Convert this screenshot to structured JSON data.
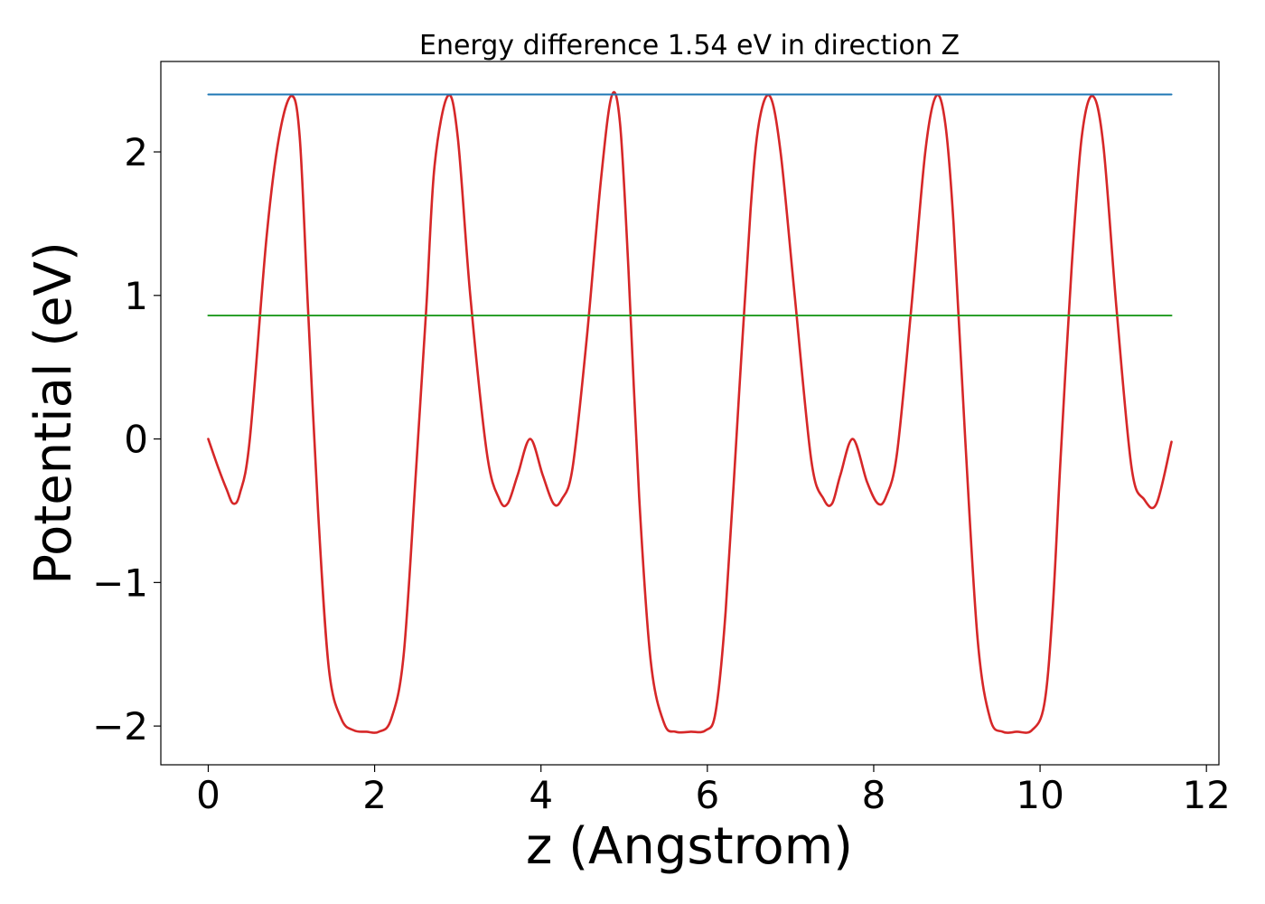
{
  "chart_data": {
    "type": "line",
    "title": "Energy difference 1.54 eV in direction Z",
    "xlabel": "z (Angstrom)",
    "ylabel": "Potential (eV)",
    "xlim": [
      -0.57,
      12.15
    ],
    "ylim": [
      -2.27,
      2.63
    ],
    "xticks": [
      0,
      2,
      4,
      6,
      8,
      10,
      12
    ],
    "yticks": [
      -2,
      -1,
      0,
      1,
      2
    ],
    "xtick_labels": [
      "0",
      "2",
      "4",
      "6",
      "8",
      "10",
      "12"
    ],
    "ytick_labels": [
      "−2",
      "−1",
      "0",
      "1",
      "2"
    ],
    "grid": false,
    "series": [
      {
        "color": "#d62728",
        "style": "curve",
        "x": [
          0.0,
          0.12,
          0.22,
          0.3,
          0.38,
          0.5,
          0.7,
          0.85,
          1.0,
          1.1,
          1.2,
          1.32,
          1.45,
          1.6,
          1.75,
          1.9,
          2.05,
          2.2,
          2.35,
          2.5,
          2.62,
          2.72,
          2.88,
          3.0,
          3.15,
          3.35,
          3.5,
          3.6,
          3.72,
          3.87,
          4.02,
          4.15,
          4.25,
          4.38,
          4.55,
          4.72,
          4.85,
          4.95,
          5.05,
          5.18,
          5.32,
          5.48,
          5.62,
          5.8,
          5.98,
          6.1,
          6.22,
          6.38,
          6.52,
          6.62,
          6.75,
          6.88,
          7.05,
          7.25,
          7.4,
          7.5,
          7.6,
          7.75,
          7.92,
          8.05,
          8.15,
          8.28,
          8.45,
          8.62,
          8.75,
          8.86,
          8.96,
          9.1,
          9.25,
          9.4,
          9.55,
          9.72,
          9.9,
          10.05,
          10.15,
          10.25,
          10.38,
          10.5,
          10.63,
          10.76,
          10.92,
          11.1,
          11.25,
          11.4,
          11.58
        ],
        "y": [
          0.0,
          -0.2,
          -0.35,
          -0.45,
          -0.38,
          0.0,
          1.4,
          2.1,
          2.39,
          2.1,
          0.9,
          -0.5,
          -1.6,
          -1.95,
          -2.03,
          -2.04,
          -2.04,
          -1.95,
          -1.5,
          -0.2,
          0.9,
          1.9,
          2.39,
          2.1,
          1.0,
          -0.1,
          -0.42,
          -0.45,
          -0.25,
          0.0,
          -0.25,
          -0.45,
          -0.42,
          -0.2,
          0.7,
          1.8,
          2.39,
          2.2,
          1.2,
          -0.4,
          -1.55,
          -1.98,
          -2.04,
          -2.04,
          -2.03,
          -1.9,
          -1.2,
          0.3,
          1.6,
          2.2,
          2.39,
          2.0,
          1.0,
          -0.15,
          -0.42,
          -0.45,
          -0.25,
          0.0,
          -0.3,
          -0.45,
          -0.4,
          -0.1,
          0.9,
          2.0,
          2.39,
          2.2,
          1.5,
          0.0,
          -1.4,
          -1.95,
          -2.04,
          -2.04,
          -2.03,
          -1.85,
          -1.2,
          -0.1,
          1.2,
          2.1,
          2.39,
          2.05,
          0.9,
          -0.2,
          -0.42,
          -0.45,
          -0.02
        ]
      },
      {
        "color": "#1f77b4",
        "style": "straight",
        "x": [
          0.0,
          11.58
        ],
        "y": [
          2.4,
          2.4
        ]
      },
      {
        "color": "#2ca02c",
        "style": "straight",
        "x": [
          0.0,
          11.58
        ],
        "y": [
          0.86,
          0.86
        ]
      }
    ]
  }
}
